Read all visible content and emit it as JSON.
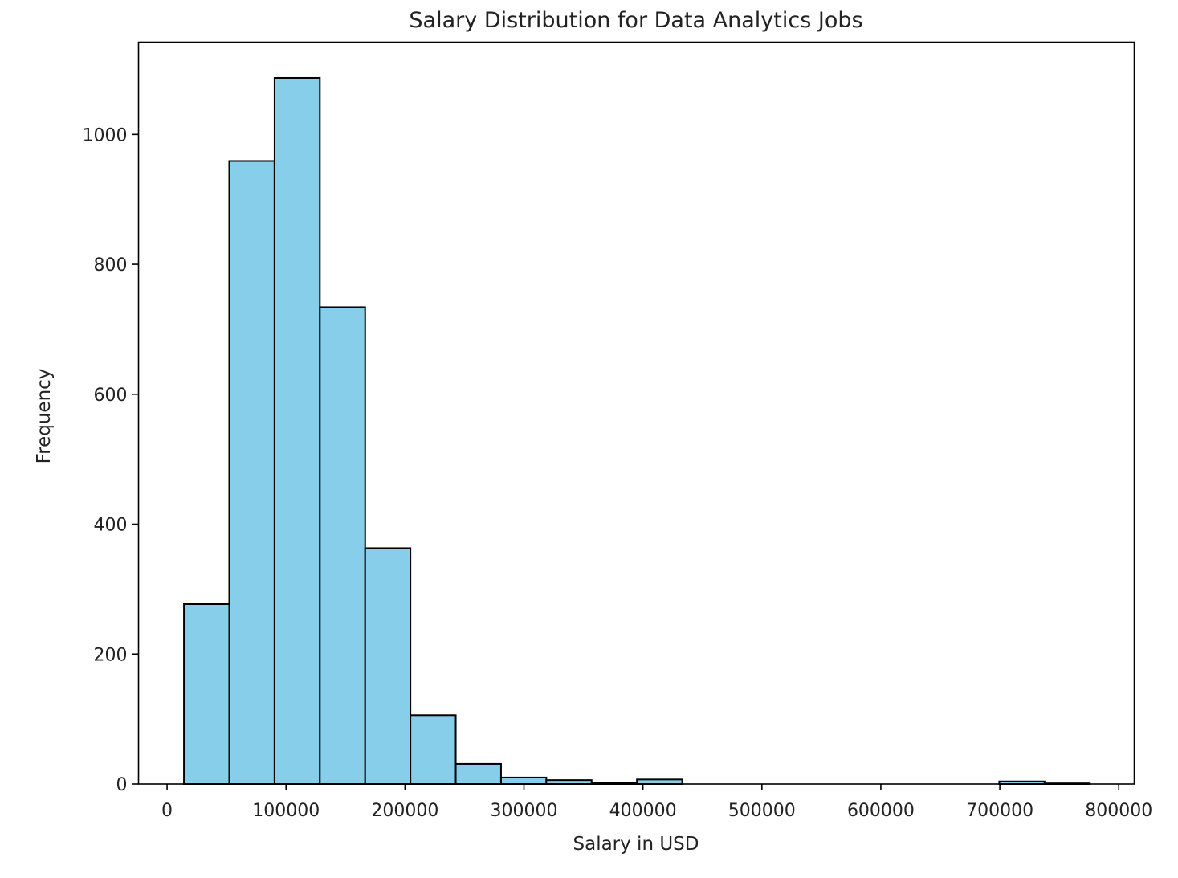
{
  "chart_data": {
    "type": "bar",
    "subtype": "histogram",
    "title": "Salary Distribution for Data Analytics Jobs",
    "xlabel": "Salary in USD",
    "ylabel": "Frequency",
    "xlim": [
      -24000,
      813000
    ],
    "ylim": [
      0,
      1142
    ],
    "bin_start": 14200,
    "bin_width": 38075,
    "values": [
      277,
      959,
      1087,
      734,
      363,
      106,
      31,
      10,
      6,
      2,
      7,
      0,
      0,
      0,
      0,
      0,
      0,
      0,
      4,
      1
    ],
    "xticks": [
      0,
      100000,
      200000,
      300000,
      400000,
      500000,
      600000,
      700000,
      800000
    ],
    "xtick_labels": [
      "0",
      "100000",
      "200000",
      "300000",
      "400000",
      "500000",
      "600000",
      "700000",
      "800000"
    ],
    "yticks": [
      0,
      200,
      400,
      600,
      800,
      1000
    ],
    "ytick_labels": [
      "0",
      "200",
      "400",
      "600",
      "800",
      "1000"
    ],
    "bar_color": "#87ceeb",
    "edge_color": "#000000",
    "grid": false,
    "legend": "none"
  }
}
